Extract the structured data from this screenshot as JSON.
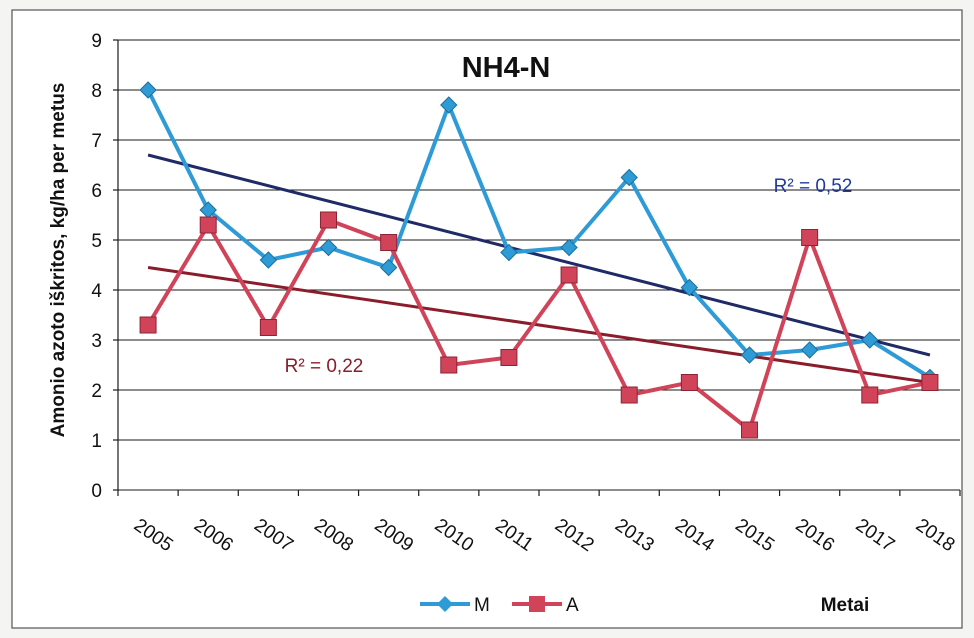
{
  "colors": {
    "series_M": "#2e9bd6",
    "series_A": "#d04358",
    "trend_M": "#1f2a66",
    "trend_A": "#8a1c2b",
    "annot_M": "#1f3aa0",
    "annot_A": "#8a1c2b"
  },
  "chart_data": {
    "type": "line",
    "title": "NH4-N",
    "xlabel": "Metai",
    "ylabel": "Amonio azoto iškritos, kg/ha per metus",
    "categories": [
      "2005",
      "2006",
      "2007",
      "2008",
      "2009",
      "2010",
      "2011",
      "2012",
      "2013",
      "2014",
      "2015",
      "2016",
      "2017",
      "2018"
    ],
    "ylim": [
      0,
      9
    ],
    "yticks": [
      "0",
      "1",
      "2",
      "3",
      "4",
      "5",
      "6",
      "7",
      "8",
      "9"
    ],
    "grid": true,
    "legend_position": "bottom",
    "series": [
      {
        "name": "M",
        "marker": "diamond",
        "values": [
          8.0,
          5.6,
          4.6,
          4.85,
          4.45,
          7.7,
          4.75,
          4.85,
          6.25,
          4.05,
          2.7,
          2.8,
          3.0,
          2.25
        ]
      },
      {
        "name": "A",
        "marker": "square",
        "values": [
          3.3,
          5.3,
          3.25,
          5.4,
          4.95,
          2.5,
          2.65,
          4.3,
          1.9,
          2.15,
          1.2,
          5.05,
          1.9,
          2.15
        ]
      }
    ],
    "trendlines": [
      {
        "series": "M",
        "start": 6.7,
        "end": 2.7,
        "label": "R² = 0,52"
      },
      {
        "series": "A",
        "start": 4.45,
        "end": 2.15,
        "label": "R² = 0,22"
      }
    ]
  }
}
